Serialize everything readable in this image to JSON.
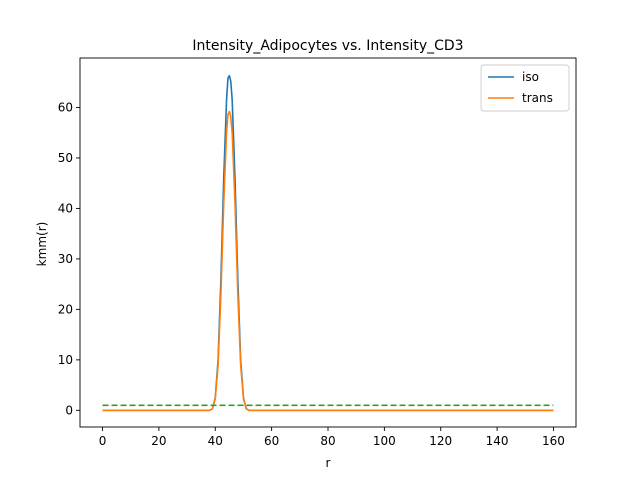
{
  "chart_data": {
    "type": "line",
    "title": "Intensity_Adipocytes vs. Intensity_CD3",
    "xlabel": "r",
    "ylabel": "kmm(r)",
    "xlim": [
      -8,
      168
    ],
    "ylim": [
      -3.3,
      69.8
    ],
    "xticks": [
      0,
      20,
      40,
      60,
      80,
      100,
      120,
      140,
      160
    ],
    "yticks": [
      0,
      10,
      20,
      30,
      40,
      50,
      60
    ],
    "grid": false,
    "legend_position": "top-right",
    "series": [
      {
        "name": "iso",
        "color": "#1f77b4",
        "style": "solid",
        "x": [
          0,
          38,
          39,
          40,
          41,
          42,
          43,
          44,
          44.5,
          45,
          45.5,
          46,
          47,
          48,
          49,
          50,
          51,
          52,
          160
        ],
        "y": [
          0,
          0,
          0.3,
          2.5,
          10,
          26,
          46,
          61.5,
          65.8,
          66.3,
          65.2,
          61.5,
          46,
          26,
          10,
          2.5,
          0.3,
          0,
          0
        ]
      },
      {
        "name": "trans",
        "color": "#ff7f0e",
        "style": "solid",
        "x": [
          0,
          38,
          39,
          40,
          41,
          42,
          43,
          44,
          44.5,
          45,
          45.5,
          46,
          47,
          48,
          49,
          50,
          51,
          52,
          160
        ],
        "y": [
          0,
          0,
          0.3,
          2.3,
          9,
          23,
          41,
          55,
          58.6,
          59.2,
          58.2,
          55,
          41,
          23,
          9,
          2.3,
          0.3,
          0,
          0
        ]
      },
      {
        "color": "#2ca02c",
        "style": "dashed",
        "x": [
          0,
          160
        ],
        "y": [
          1,
          1
        ]
      }
    ]
  }
}
